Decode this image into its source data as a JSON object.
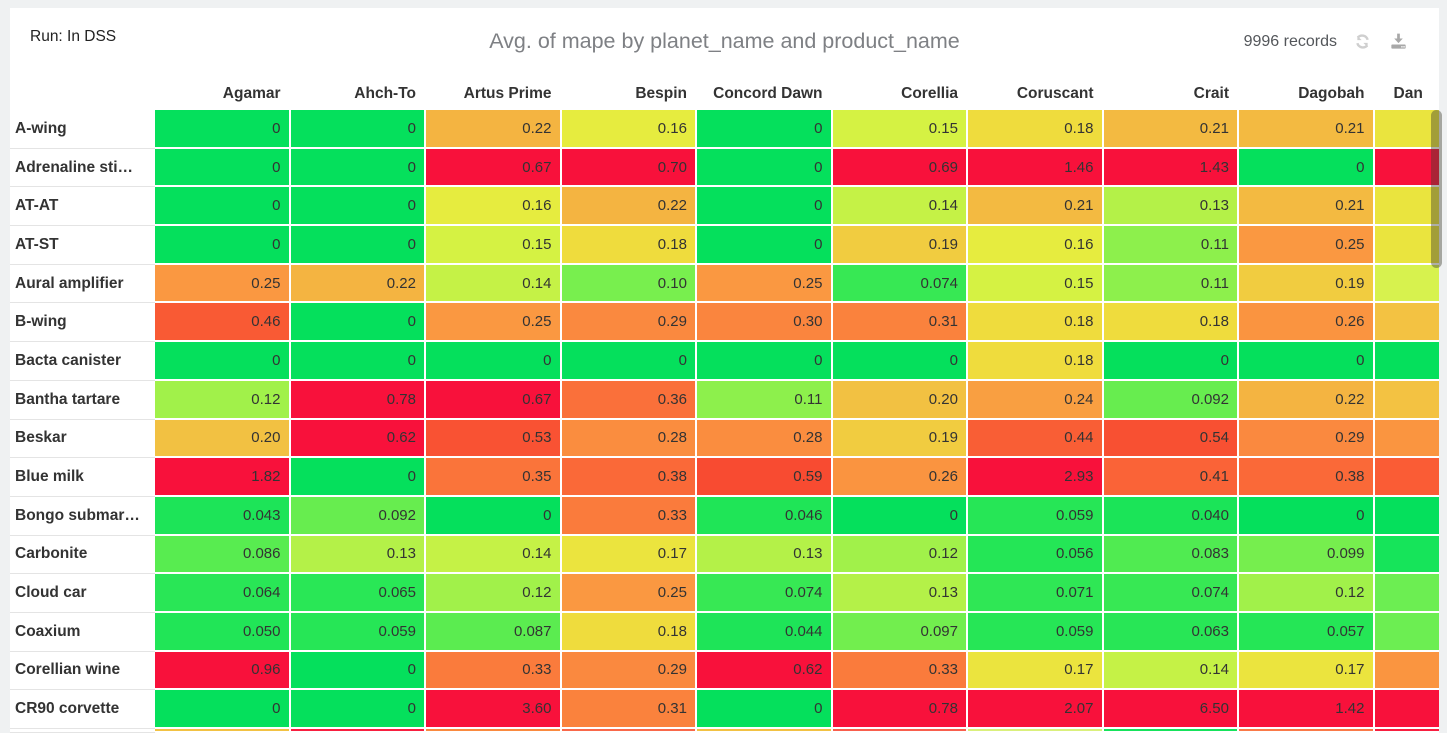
{
  "header": {
    "run_label": "Run: In DSS",
    "title": "Avg. of mape by planet_name and product_name",
    "records": "9996 records"
  },
  "icons": {
    "refresh": "refresh-icon",
    "download": "download-icon"
  },
  "chart_data": {
    "type": "heatmap",
    "title": "Avg. of mape by planet_name and product_name",
    "measure": "Avg. of mape",
    "x_dimension": "planet_name",
    "y_dimension": "product_name",
    "legend_position": "none",
    "grid": true,
    "columns": [
      "Agamar",
      "Ahch-To",
      "Artus Prime",
      "Bespin",
      "Concord Dawn",
      "Corellia",
      "Coruscant",
      "Crait",
      "Dagobah"
    ],
    "partial_column": {
      "header": "Dan",
      "cell_colors": [
        "#eae43e",
        "#f8113b",
        "#eae43e",
        "#eae43e",
        "#d7f24e",
        "#f3c242",
        "#05e05c",
        "#f3c242",
        "#fa9540",
        "#fa5c35",
        "#05e05c",
        "#16e45a",
        "#6cee52",
        "#6cee52",
        "#fa9540",
        "#f8113b"
      ]
    },
    "rows": [
      {
        "label": "A-wing",
        "values": [
          "0",
          "0",
          "0.22",
          "0.16",
          "0",
          "0.15",
          "0.18",
          "0.21",
          "0.21"
        ]
      },
      {
        "label": "Adrenaline sti…",
        "values": [
          "0",
          "0",
          "0.67",
          "0.70",
          "0",
          "0.69",
          "1.46",
          "1.43",
          "0"
        ]
      },
      {
        "label": "AT-AT",
        "values": [
          "0",
          "0",
          "0.16",
          "0.22",
          "0",
          "0.14",
          "0.21",
          "0.13",
          "0.21"
        ]
      },
      {
        "label": "AT-ST",
        "values": [
          "0",
          "0",
          "0.15",
          "0.18",
          "0",
          "0.19",
          "0.16",
          "0.11",
          "0.25"
        ]
      },
      {
        "label": "Aural amplifier",
        "values": [
          "0.25",
          "0.22",
          "0.14",
          "0.10",
          "0.25",
          "0.074",
          "0.15",
          "0.11",
          "0.19"
        ]
      },
      {
        "label": "B-wing",
        "values": [
          "0.46",
          "0",
          "0.25",
          "0.29",
          "0.30",
          "0.31",
          "0.18",
          "0.18",
          "0.26"
        ]
      },
      {
        "label": "Bacta canister",
        "values": [
          "0",
          "0",
          "0",
          "0",
          "0",
          "0",
          "0.18",
          "0",
          "0"
        ]
      },
      {
        "label": "Bantha tartare",
        "values": [
          "0.12",
          "0.78",
          "0.67",
          "0.36",
          "0.11",
          "0.20",
          "0.24",
          "0.092",
          "0.22"
        ]
      },
      {
        "label": "Beskar",
        "values": [
          "0.20",
          "0.62",
          "0.53",
          "0.28",
          "0.28",
          "0.19",
          "0.44",
          "0.54",
          "0.29"
        ]
      },
      {
        "label": "Blue milk",
        "values": [
          "1.82",
          "0",
          "0.35",
          "0.38",
          "0.59",
          "0.26",
          "2.93",
          "0.41",
          "0.38"
        ]
      },
      {
        "label": "Bongo submar…",
        "values": [
          "0.043",
          "0.092",
          "0",
          "0.33",
          "0.046",
          "0",
          "0.059",
          "0.040",
          "0"
        ]
      },
      {
        "label": "Carbonite",
        "values": [
          "0.086",
          "0.13",
          "0.14",
          "0.17",
          "0.13",
          "0.12",
          "0.056",
          "0.083",
          "0.099"
        ]
      },
      {
        "label": "Cloud car",
        "values": [
          "0.064",
          "0.065",
          "0.12",
          "0.25",
          "0.074",
          "0.13",
          "0.071",
          "0.074",
          "0.12"
        ]
      },
      {
        "label": "Coaxium",
        "values": [
          "0.050",
          "0.059",
          "0.087",
          "0.18",
          "0.044",
          "0.097",
          "0.059",
          "0.063",
          "0.057"
        ]
      },
      {
        "label": "Corellian wine",
        "values": [
          "0.96",
          "0",
          "0.33",
          "0.29",
          "0.62",
          "0.33",
          "0.17",
          "0.14",
          "0.17"
        ]
      },
      {
        "label": "CR90 corvette",
        "values": [
          "0",
          "0",
          "3.60",
          "0.31",
          "0",
          "0.78",
          "2.07",
          "6.50",
          "1.42"
        ]
      }
    ],
    "partial_bottom_row_colors": [
      "#f2c243",
      "#f81f40",
      "#fa8a3f",
      "#f9684a",
      "#f2c243",
      "#f95e4d",
      "#daf07c",
      "#16e35c",
      "#fa7a49",
      "#f81f40"
    ],
    "color_scale": {
      "description": "green (low) → yellow → orange → red (high)",
      "anchors": [
        [
          0.0,
          "#05e05c"
        ],
        [
          0.07,
          "#2ce755"
        ],
        [
          0.09,
          "#63ed4f"
        ],
        [
          0.11,
          "#8df04c"
        ],
        [
          0.13,
          "#b4f148"
        ],
        [
          0.15,
          "#d5f243"
        ],
        [
          0.16,
          "#e6ec3f"
        ],
        [
          0.18,
          "#efdc3d"
        ],
        [
          0.195,
          "#f2c442"
        ],
        [
          0.22,
          "#f4b441"
        ],
        [
          0.245,
          "#fa9a41"
        ],
        [
          0.3,
          "#fa853e"
        ],
        [
          0.38,
          "#fa6938"
        ],
        [
          0.47,
          "#f95834"
        ],
        [
          0.6,
          "#f84a31"
        ]
      ],
      "clamp_high": {
        "threshold": 0.61,
        "color": "#f8113b"
      }
    }
  }
}
